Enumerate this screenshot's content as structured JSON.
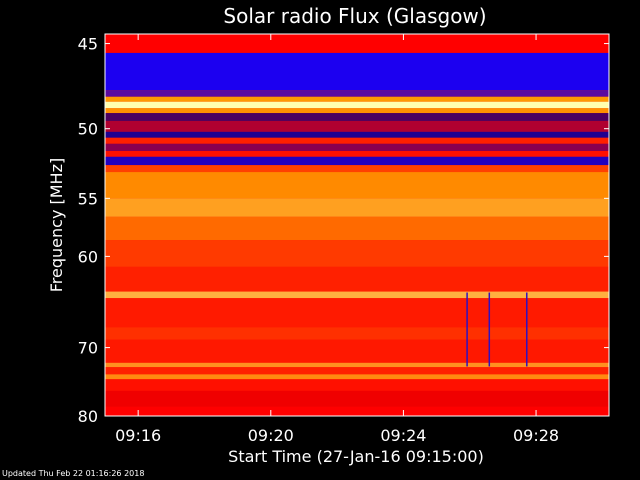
{
  "chart_data": {
    "type": "heatmap",
    "title": "Solar radio Flux (Glasgow)",
    "xlabel": "Start Time (27-Jan-16 09:15:00)",
    "ylabel": "Frequency [MHz]",
    "x_ticks": [
      "09:16",
      "09:20",
      "09:24",
      "09:28"
    ],
    "y_ticks": [
      "45",
      "50",
      "55",
      "60",
      "70",
      "80"
    ],
    "y_tick_values": [
      45,
      50,
      55,
      60,
      70,
      80
    ],
    "y_scale": "reciprocal",
    "y_range_mhz": [
      44.5,
      80
    ],
    "x_tick_minutes": [
      16,
      20,
      24,
      28
    ],
    "x_range_minutes": [
      15.0,
      30.2
    ],
    "bands": [
      {
        "from": 44.5,
        "to": 45.5,
        "color": "#ff0000"
      },
      {
        "from": 45.5,
        "to": 47.6,
        "color": "#1c00f0"
      },
      {
        "from": 47.6,
        "to": 48.0,
        "color": "#5a0aa0"
      },
      {
        "from": 48.0,
        "to": 48.3,
        "color": "#ff9900"
      },
      {
        "from": 48.3,
        "to": 48.7,
        "color": "#ffffb0"
      },
      {
        "from": 48.7,
        "to": 49.0,
        "color": "#ff9000"
      },
      {
        "from": 49.0,
        "to": 49.5,
        "color": "#4a0060"
      },
      {
        "from": 49.5,
        "to": 50.2,
        "color": "#b00030"
      },
      {
        "from": 50.2,
        "to": 50.6,
        "color": "#200090"
      },
      {
        "from": 50.6,
        "to": 51.0,
        "color": "#ff2000"
      },
      {
        "from": 51.0,
        "to": 51.5,
        "color": "#8a0050"
      },
      {
        "from": 51.5,
        "to": 51.9,
        "color": "#ff1000"
      },
      {
        "from": 51.9,
        "to": 52.5,
        "color": "#2200c0"
      },
      {
        "from": 52.5,
        "to": 53.0,
        "color": "#ff4000"
      },
      {
        "from": 53.0,
        "to": 55.0,
        "color": "#ff8a00"
      },
      {
        "from": 55.0,
        "to": 56.5,
        "color": "#ffa020"
      },
      {
        "from": 56.5,
        "to": 58.5,
        "color": "#ff6a00"
      },
      {
        "from": 58.5,
        "to": 61.0,
        "color": "#ff3a00"
      },
      {
        "from": 61.0,
        "to": 63.5,
        "color": "#ff2000"
      },
      {
        "from": 63.5,
        "to": 64.2,
        "color": "#ffb040"
      },
      {
        "from": 64.2,
        "to": 67.5,
        "color": "#ff1a00"
      },
      {
        "from": 67.5,
        "to": 69.0,
        "color": "#ff3000"
      },
      {
        "from": 69.0,
        "to": 72.0,
        "color": "#ff1800"
      },
      {
        "from": 72.0,
        "to": 72.6,
        "color": "#ff9020"
      },
      {
        "from": 72.6,
        "to": 73.6,
        "color": "#ff2000"
      },
      {
        "from": 73.6,
        "to": 74.3,
        "color": "#ff8a10"
      },
      {
        "from": 74.3,
        "to": 76.0,
        "color": "#ff1000"
      },
      {
        "from": 76.0,
        "to": 78.5,
        "color": "#f00000"
      },
      {
        "from": 78.5,
        "to": 80.0,
        "color": "#ff0000"
      }
    ],
    "spike_minutes": [
      25.92,
      26.59,
      27.72
    ],
    "spike_color": "#3010c0",
    "grid": false,
    "legend": "none"
  },
  "footer": "Updated Thu Feb 22 01:16:26 2018"
}
